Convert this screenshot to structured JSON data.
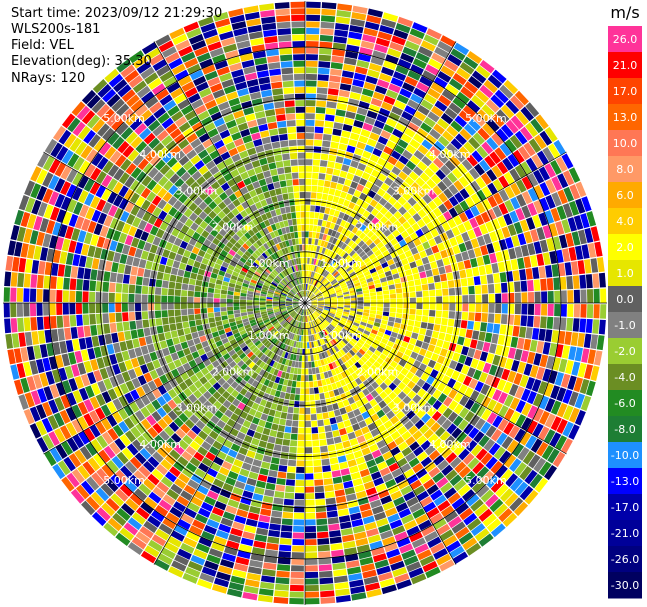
{
  "header": {
    "start_time": "Start time: 2023/09/12 21:29:30",
    "instrument": "WLS200s-181",
    "field": "Field: VEL",
    "elevation": "Elevation(deg): 35.30",
    "nrays": "NRays: 120"
  },
  "chart_data": {
    "type": "heatmap",
    "projection": "polar PPI",
    "nrays": 120,
    "rings_km": [
      0.5,
      1.0,
      2.0,
      3.0,
      4.0,
      5.0
    ],
    "ring_labels": [
      "1.00km",
      "2.00km",
      "3.00km",
      "4.00km",
      "5.00km"
    ],
    "max_range_km": 5.9,
    "colorbar": {
      "unit": "m/s",
      "ticks": [
        "26.0",
        "21.0",
        "17.0",
        "13.0",
        "10.0",
        "8.0",
        "6.0",
        "4.0",
        "2.0",
        "1.0",
        "0.0",
        "-1.0",
        "-2.0",
        "-4.0",
        "-6.0",
        "-8.0",
        "-10.0",
        "-13.0",
        "-17.0",
        "-21.0",
        "-26.0",
        "-30.0"
      ],
      "colors": [
        "#ff3399",
        "#ff0000",
        "#ff4400",
        "#ff6600",
        "#ff7755",
        "#ff9966",
        "#ffaa00",
        "#ffcc00",
        "#ffff00",
        "#e6e600",
        "#606060",
        "#808080",
        "#9acd32",
        "#6b8e23",
        "#228b22",
        "#1e7e34",
        "#1e90ff",
        "#0000ff",
        "#0000aa",
        "#000099",
        "#000080",
        "#000060"
      ]
    },
    "notes": "Wind-lidar radial velocity PPI; near-range gates mostly 0 to +4 m/s (yellow/gray) on the east half and 0 to -4 m/s (olive/green) on the west half; outer gates noisy across full color range."
  }
}
